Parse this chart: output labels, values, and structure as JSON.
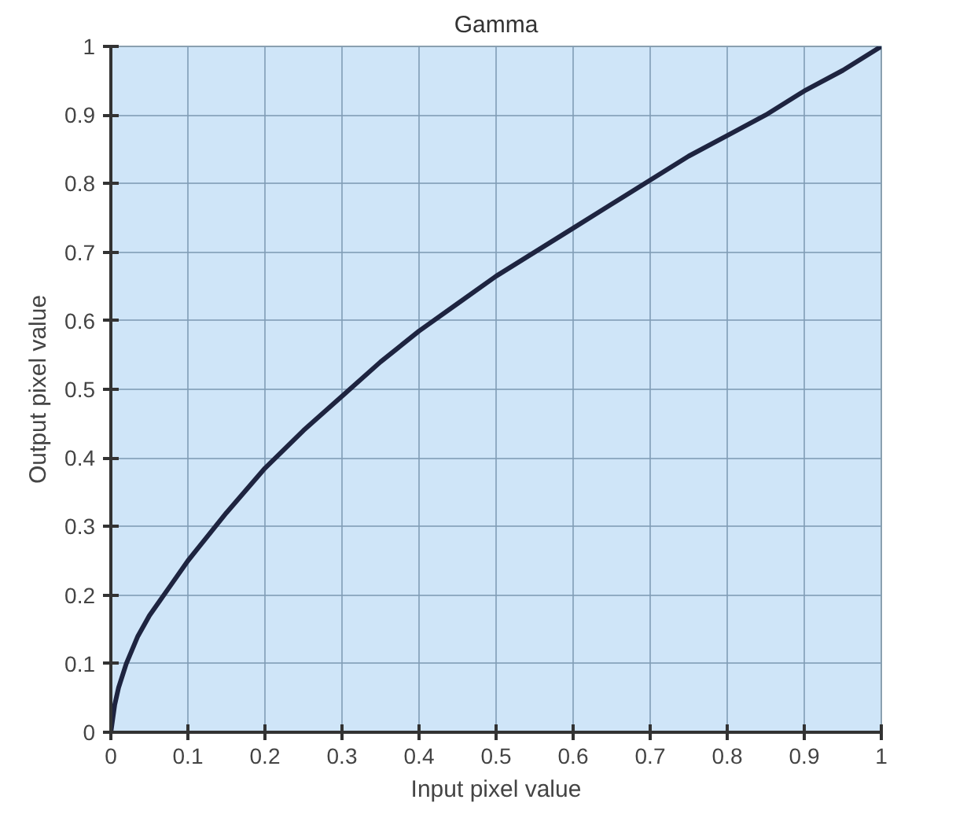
{
  "chart_data": {
    "type": "line",
    "title": "Gamma",
    "xlabel": "Input pixel value",
    "ylabel": "Output pixel value",
    "x": [
      0,
      0.005,
      0.01,
      0.02,
      0.035,
      0.05,
      0.075,
      0.1,
      0.15,
      0.2,
      0.25,
      0.3,
      0.35,
      0.4,
      0.45,
      0.5,
      0.55,
      0.6,
      0.65,
      0.7,
      0.75,
      0.8,
      0.85,
      0.9,
      0.95,
      1
    ],
    "series": [
      {
        "color": "#1e2440",
        "values": [
          0,
          0.04,
          0.065,
          0.1,
          0.14,
          0.17,
          0.21,
          0.25,
          0.32,
          0.385,
          0.44,
          0.49,
          0.54,
          0.585,
          0.625,
          0.665,
          0.7,
          0.735,
          0.77,
          0.805,
          0.84,
          0.87,
          0.9,
          0.935,
          0.965,
          1
        ]
      }
    ],
    "xlim": [
      0,
      1
    ],
    "ylim": [
      0,
      1
    ],
    "xticks": [
      0,
      0.1,
      0.2,
      0.3,
      0.4,
      0.5,
      0.6,
      0.7,
      0.8,
      0.9,
      1
    ],
    "yticks": [
      0,
      0.1,
      0.2,
      0.3,
      0.4,
      0.5,
      0.6,
      0.7,
      0.8,
      0.9,
      1
    ],
    "grid": true,
    "line_style": "solid"
  }
}
